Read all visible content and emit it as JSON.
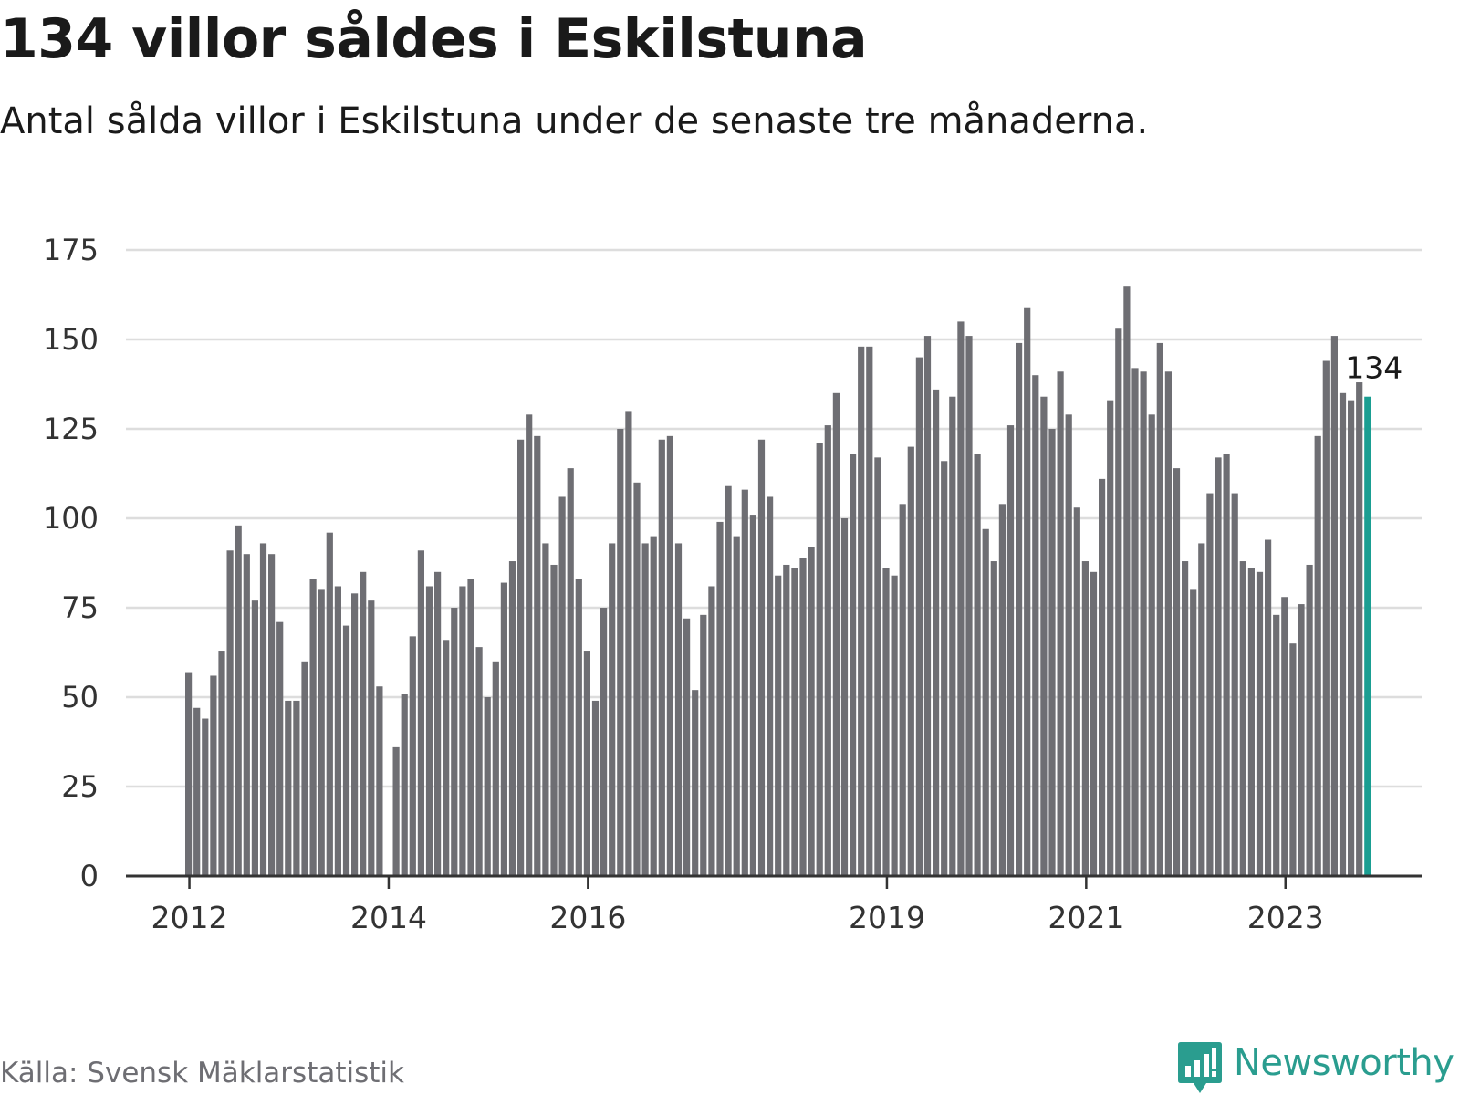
{
  "title": "134 villor såldes i Eskilstuna",
  "subtitle": "Antal sålda villor i Eskilstuna under de senaste tre månaderna.",
  "source": "Källa: Svensk Mäklarstatistik",
  "brand": {
    "name": "Newsworthy",
    "icon": "newsworthy-logo-icon",
    "color": "#2a9d8f"
  },
  "colors": {
    "bar": "#6e6e73",
    "highlight": "#1a9e92",
    "grid": "#dddddd",
    "axis": "#333333"
  },
  "chart_data": {
    "type": "bar",
    "title": "134 villor såldes i Eskilstuna",
    "subtitle": "Antal sålda villor i Eskilstuna under de senaste tre månaderna.",
    "xlabel": "",
    "ylabel": "",
    "ylim": [
      0,
      175
    ],
    "yticks": [
      "0",
      "25",
      "50",
      "75",
      "100",
      "125",
      "150",
      "175"
    ],
    "grid": true,
    "start": "2012-01",
    "x_tick_labels": [
      {
        "label": "2012",
        "index": 0
      },
      {
        "label": "2014",
        "index": 24
      },
      {
        "label": "2016",
        "index": 48
      },
      {
        "label": "2019",
        "index": 84
      },
      {
        "label": "2021",
        "index": 108
      },
      {
        "label": "2023",
        "index": 132
      }
    ],
    "values": [
      57,
      47,
      44,
      56,
      63,
      91,
      98,
      90,
      77,
      93,
      90,
      71,
      49,
      49,
      60,
      83,
      80,
      96,
      81,
      70,
      79,
      85,
      77,
      53,
      null,
      36,
      51,
      67,
      91,
      81,
      85,
      66,
      75,
      81,
      83,
      64,
      50,
      60,
      82,
      88,
      122,
      129,
      123,
      93,
      87,
      106,
      114,
      83,
      63,
      49,
      75,
      93,
      125,
      130,
      110,
      93,
      95,
      122,
      123,
      93,
      72,
      52,
      73,
      81,
      99,
      109,
      95,
      108,
      101,
      122,
      106,
      84,
      87,
      86,
      89,
      92,
      121,
      126,
      135,
      100,
      118,
      148,
      148,
      117,
      86,
      84,
      104,
      120,
      145,
      151,
      136,
      116,
      134,
      155,
      151,
      118,
      97,
      88,
      104,
      126,
      149,
      159,
      140,
      134,
      125,
      141,
      129,
      103,
      88,
      85,
      111,
      133,
      153,
      165,
      142,
      141,
      129,
      149,
      141,
      114,
      88,
      80,
      93,
      107,
      117,
      118,
      107,
      88,
      86,
      85,
      94,
      73,
      78,
      65,
      76,
      87,
      123,
      144,
      151,
      135,
      133,
      138,
      134
    ],
    "highlight_index": 142,
    "highlight_label": "134"
  }
}
